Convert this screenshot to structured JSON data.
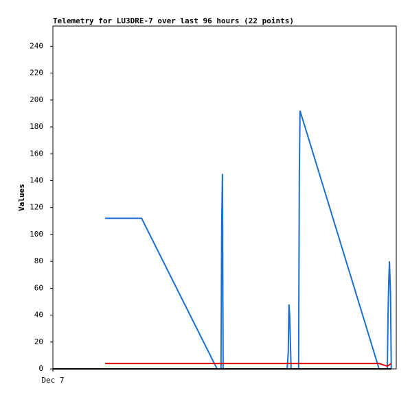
{
  "chart_data": {
    "type": "line",
    "title": "Telemetry for LU3DRE-7 over last 96 hours (22 points)",
    "y_label": "Values",
    "xlim": [
      0,
      96
    ],
    "xticks": [
      {
        "value": 0,
        "label": "Dec 7"
      }
    ],
    "ylim": [
      0,
      255
    ],
    "yticks": [
      0,
      20,
      40,
      60,
      80,
      100,
      120,
      140,
      160,
      180,
      200,
      220,
      240
    ],
    "series": [
      {
        "color": "#1a6fd0",
        "x": [
          14.6,
          24.8,
          45.9,
          47.0,
          47.2,
          47.4,
          47.6,
          65.5,
          65.8,
          66.0,
          66.2,
          66.6,
          68.7,
          68.9,
          69.1,
          91.2,
          93.5,
          93.7,
          93.9,
          94.1,
          94.4,
          94.6
        ],
        "values": [
          112,
          112,
          0,
          0,
          108,
          145,
          0,
          0,
          12,
          48,
          40,
          0,
          0,
          145,
          192,
          0,
          0,
          40,
          65,
          80,
          55,
          0
        ]
      },
      {
        "color": "#e00000",
        "x": [
          14.6,
          91.2,
          93.5,
          94.6
        ],
        "values": [
          4,
          4,
          2,
          4
        ]
      },
      {
        "color": "#000000",
        "x": [
          0,
          94.6
        ],
        "values": [
          0,
          0
        ]
      }
    ]
  }
}
